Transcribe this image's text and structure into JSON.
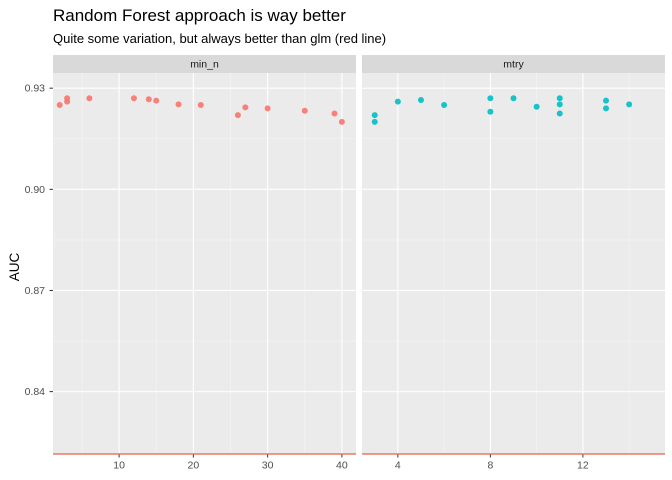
{
  "chart_data": {
    "type": "scatter",
    "title": "Random Forest approach is way better",
    "subtitle": "Quite some variation, but always better than glm (red line)",
    "ylabel": "AUC",
    "xlabel": "",
    "ylim": [
      0.8215,
      0.9345
    ],
    "y_ticks": [
      0.84,
      0.87,
      0.9,
      0.93
    ],
    "y_tick_labels": [
      "0.84",
      "0.87",
      "0.90",
      "0.93"
    ],
    "grid": true,
    "legend": "none",
    "reference_line": {
      "y": 0.8215,
      "color": "#E8604C"
    },
    "panels": [
      {
        "name": "min_n",
        "color": "#F8766D",
        "xlim": [
          1.1,
          41.9
        ],
        "x_ticks": [
          10,
          20,
          30,
          40
        ],
        "x_tick_labels": [
          "10",
          "20",
          "30",
          "40"
        ],
        "points": [
          {
            "x": 2,
            "y": 0.925
          },
          {
            "x": 3,
            "y": 0.926
          },
          {
            "x": 3,
            "y": 0.927
          },
          {
            "x": 6,
            "y": 0.927
          },
          {
            "x": 12,
            "y": 0.927
          },
          {
            "x": 14,
            "y": 0.9267
          },
          {
            "x": 15,
            "y": 0.9263
          },
          {
            "x": 18,
            "y": 0.9252
          },
          {
            "x": 21,
            "y": 0.925
          },
          {
            "x": 26,
            "y": 0.922
          },
          {
            "x": 27,
            "y": 0.9243
          },
          {
            "x": 30,
            "y": 0.924
          },
          {
            "x": 35,
            "y": 0.9233
          },
          {
            "x": 39,
            "y": 0.9225
          },
          {
            "x": 40,
            "y": 0.92
          }
        ]
      },
      {
        "name": "mtry",
        "color": "#00BFC4",
        "xlim": [
          2.45,
          15.55
        ],
        "x_ticks": [
          4,
          8,
          12
        ],
        "x_tick_labels": [
          "4",
          "8",
          "12"
        ],
        "points": [
          {
            "x": 3,
            "y": 0.92
          },
          {
            "x": 3,
            "y": 0.922
          },
          {
            "x": 4,
            "y": 0.926
          },
          {
            "x": 5,
            "y": 0.9265
          },
          {
            "x": 6,
            "y": 0.925
          },
          {
            "x": 8,
            "y": 0.923
          },
          {
            "x": 8,
            "y": 0.927
          },
          {
            "x": 9,
            "y": 0.927
          },
          {
            "x": 10,
            "y": 0.9245
          },
          {
            "x": 11,
            "y": 0.9225
          },
          {
            "x": 11,
            "y": 0.9252
          },
          {
            "x": 11,
            "y": 0.927
          },
          {
            "x": 13,
            "y": 0.924
          },
          {
            "x": 13,
            "y": 0.9263
          },
          {
            "x": 14,
            "y": 0.9252
          }
        ]
      }
    ]
  }
}
